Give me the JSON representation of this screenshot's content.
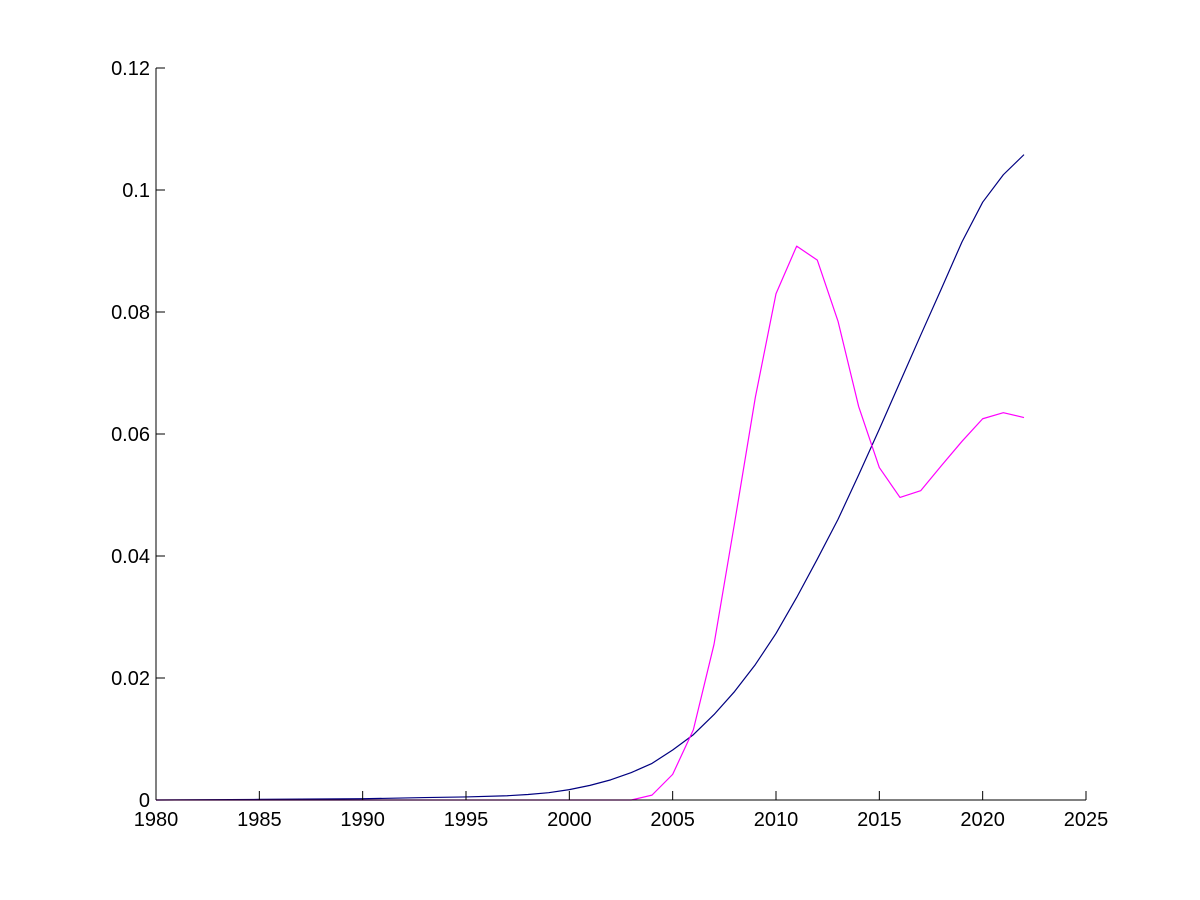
{
  "chart_data": {
    "type": "line",
    "title": "",
    "xlabel": "",
    "ylabel": "",
    "xlim": [
      1980,
      2025
    ],
    "ylim": [
      0,
      0.12
    ],
    "grid": false,
    "x_ticks": [
      1980,
      1985,
      1990,
      1995,
      2000,
      2005,
      2010,
      2015,
      2020,
      2025
    ],
    "x_tick_labels": [
      "1980",
      "1985",
      "1990",
      "1995",
      "2000",
      "2005",
      "2010",
      "2015",
      "2020",
      "2025"
    ],
    "y_ticks": [
      0,
      0.02,
      0.04,
      0.06,
      0.08,
      0.1,
      0.12
    ],
    "y_tick_labels": [
      "0",
      "0.02",
      "0.04",
      "0.06",
      "0.08",
      "0.1",
      "0.12"
    ],
    "series": [
      {
        "color": "#000080",
        "x": [
          1980,
          1985,
          1990,
          1993,
          1995,
          1997,
          1998,
          1999,
          2000,
          2001,
          2002,
          2003,
          2004,
          2005,
          2006,
          2007,
          2008,
          2009,
          2010,
          2011,
          2012,
          2013,
          2014,
          2015,
          2016,
          2017,
          2018,
          2019,
          2020,
          2021,
          2022
        ],
        "y": [
          0,
          0.0001,
          0.0002,
          0.0004,
          0.0005,
          0.0007,
          0.0009,
          0.0012,
          0.0017,
          0.0024,
          0.0033,
          0.0045,
          0.006,
          0.0082,
          0.0107,
          0.014,
          0.0178,
          0.0222,
          0.0273,
          0.0332,
          0.0395,
          0.046,
          0.0533,
          0.0608,
          0.0685,
          0.0762,
          0.0838,
          0.0915,
          0.098,
          0.1025,
          0.1058
        ]
      },
      {
        "color": "#ff00ff",
        "x": [
          1980,
          1986,
          1990,
          1995,
          2000,
          2003,
          2004,
          2005,
          2006,
          2007,
          2008,
          2009,
          2010,
          2011,
          2012,
          2013,
          2014,
          2015,
          2016,
          2017,
          2018,
          2019,
          2020,
          2021,
          2022
        ],
        "y": [
          0,
          0,
          0,
          0,
          0,
          0,
          0.0008,
          0.0042,
          0.0115,
          0.0255,
          0.0455,
          0.066,
          0.083,
          0.0908,
          0.0885,
          0.0785,
          0.0645,
          0.0545,
          0.0496,
          0.0507,
          0.0548,
          0.0588,
          0.0625,
          0.0635,
          0.0627
        ]
      }
    ]
  }
}
